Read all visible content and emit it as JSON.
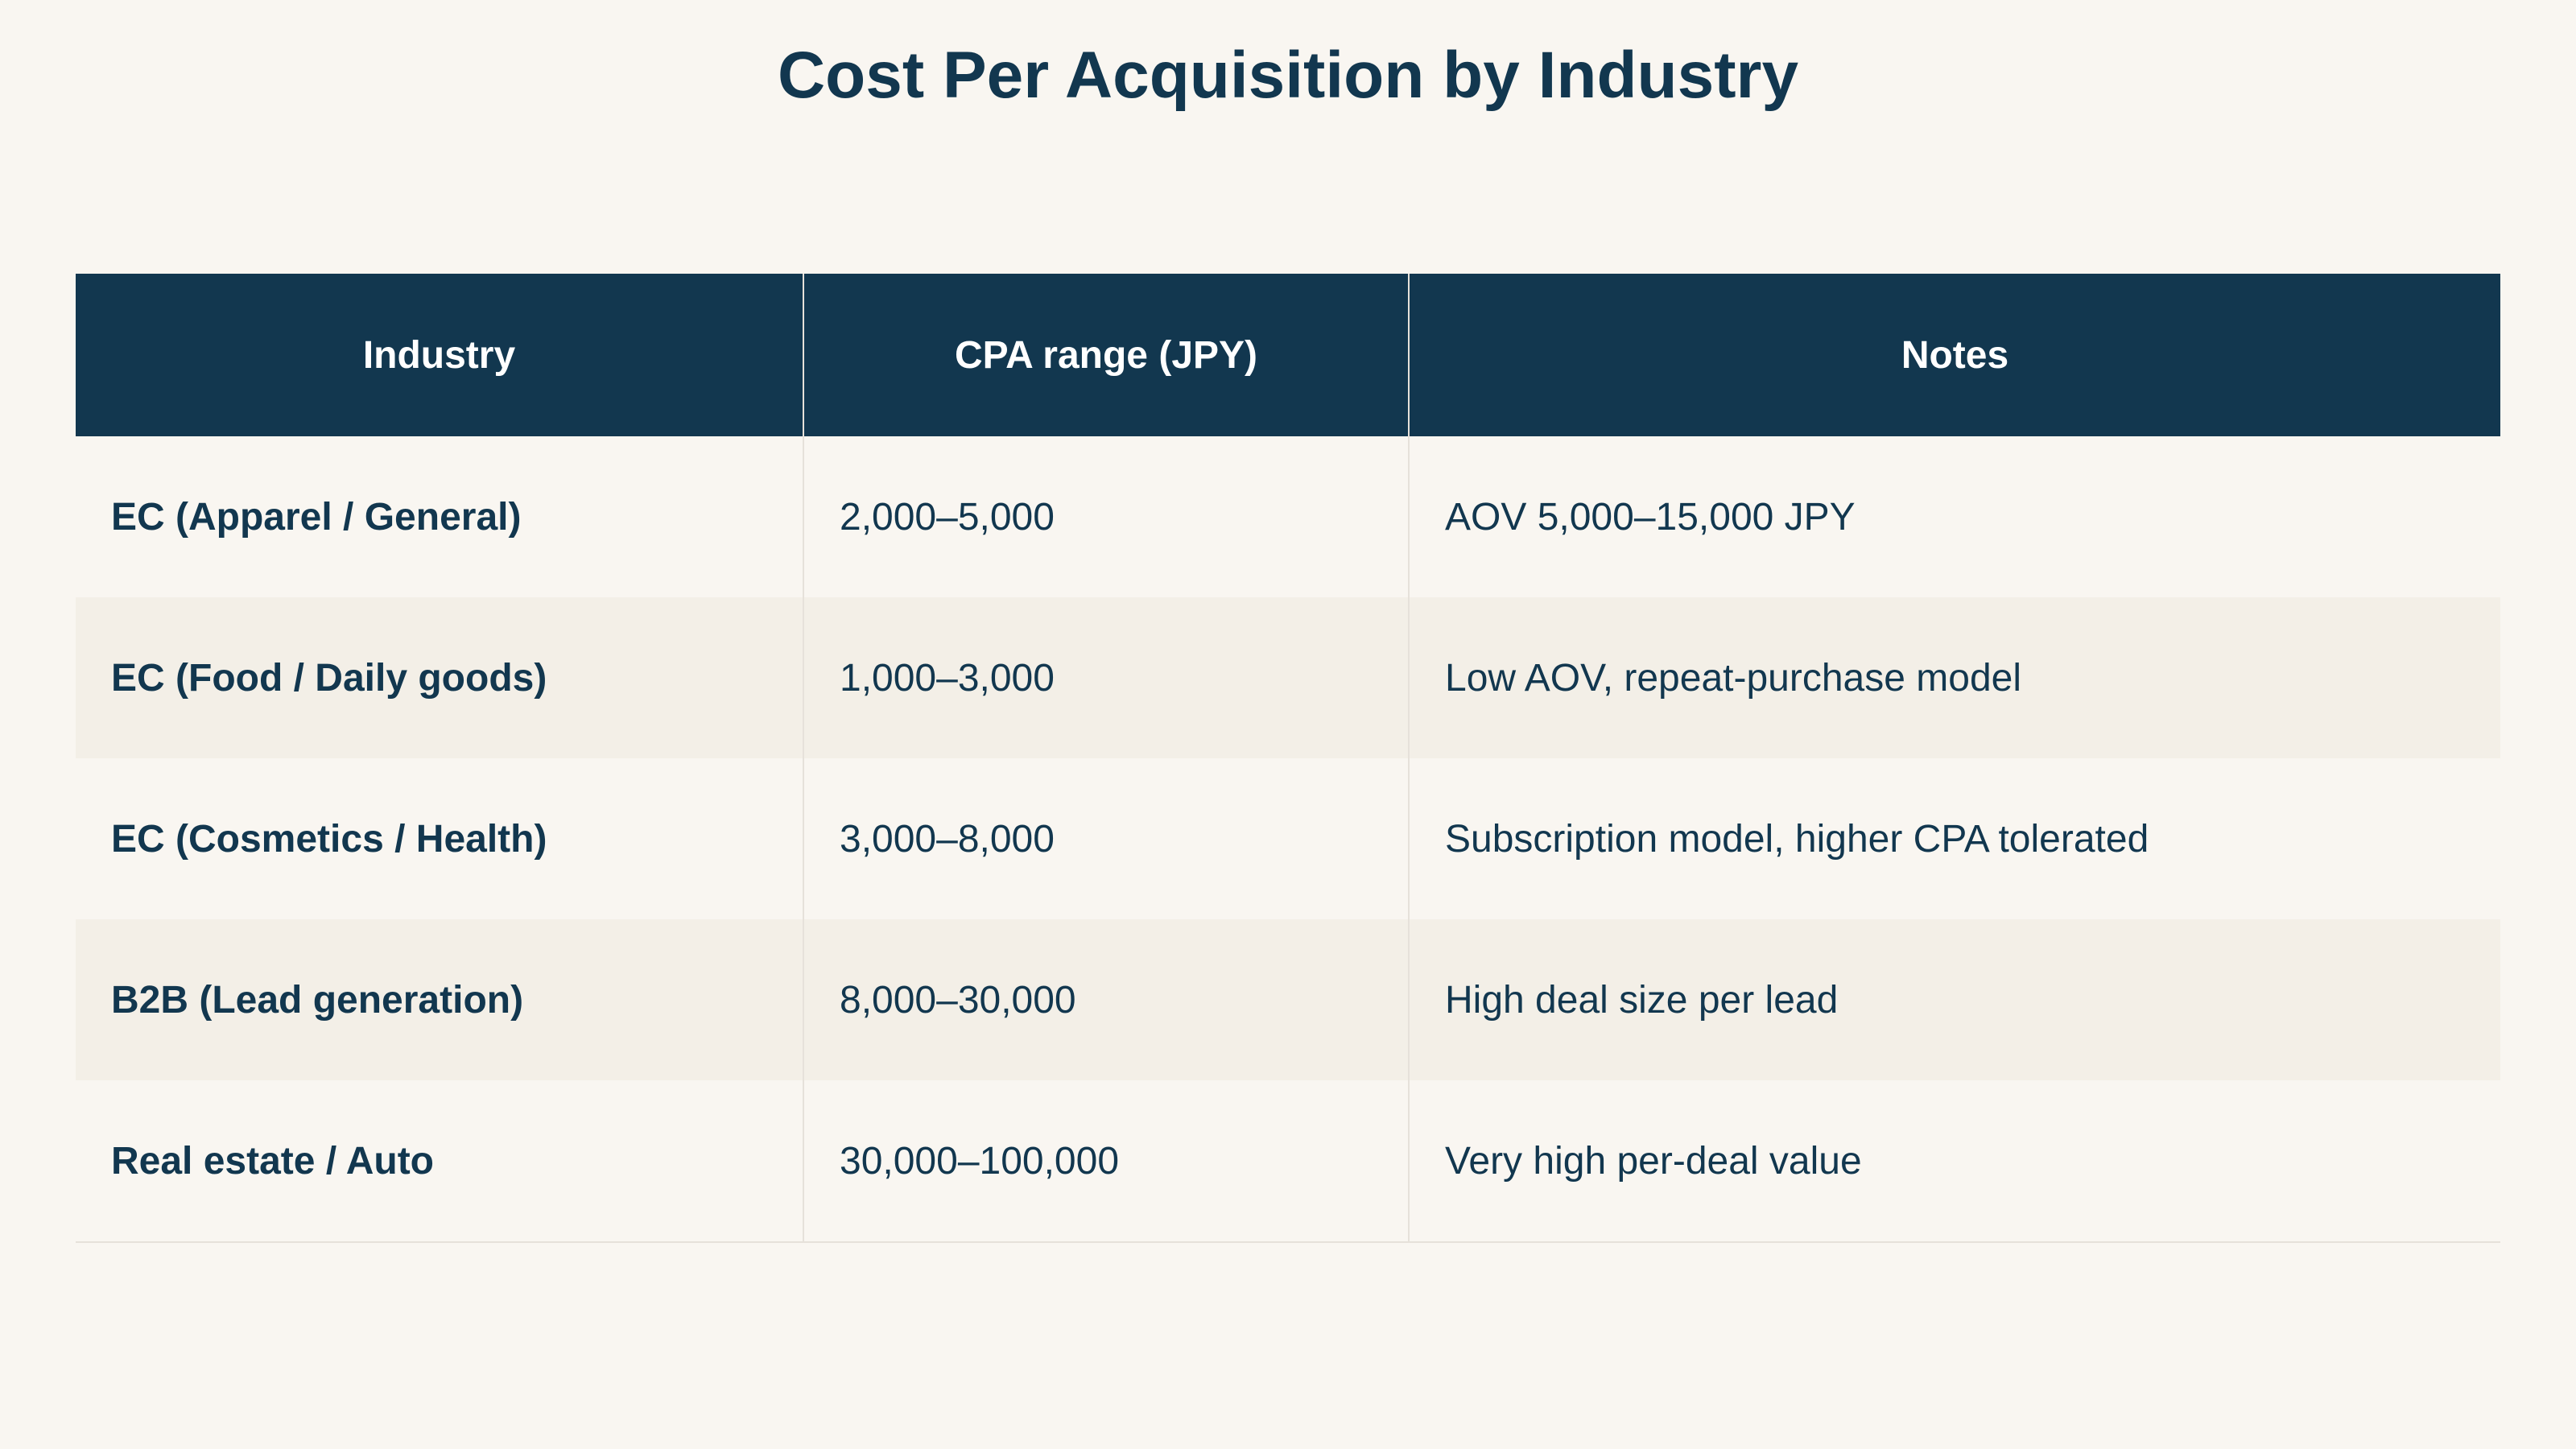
{
  "chart_data": {
    "type": "table",
    "title": "Cost Per Acquisition by Industry",
    "columns": [
      "Industry",
      "CPA range (JPY)",
      "Notes"
    ],
    "rows": [
      [
        "EC (Apparel / General)",
        "2,000–5,000",
        "AOV 5,000–15,000 JPY"
      ],
      [
        "EC (Food / Daily goods)",
        "1,000–3,000",
        "Low AOV, repeat-purchase model"
      ],
      [
        "EC (Cosmetics / Health)",
        "3,000–8,000",
        "Subscription model, higher CPA tolerated"
      ],
      [
        "B2B (Lead generation)",
        "8,000–30,000",
        "High deal size per lead"
      ],
      [
        "Real estate / Auto",
        "30,000–100,000",
        "Very high per-deal value"
      ]
    ]
  },
  "colors": {
    "background": "#f9f6f1",
    "header_bg": "#12374f",
    "header_text": "#ffffff",
    "text": "#12374f",
    "row_alt": "#f3efe7",
    "grid": "#e6e1da"
  }
}
